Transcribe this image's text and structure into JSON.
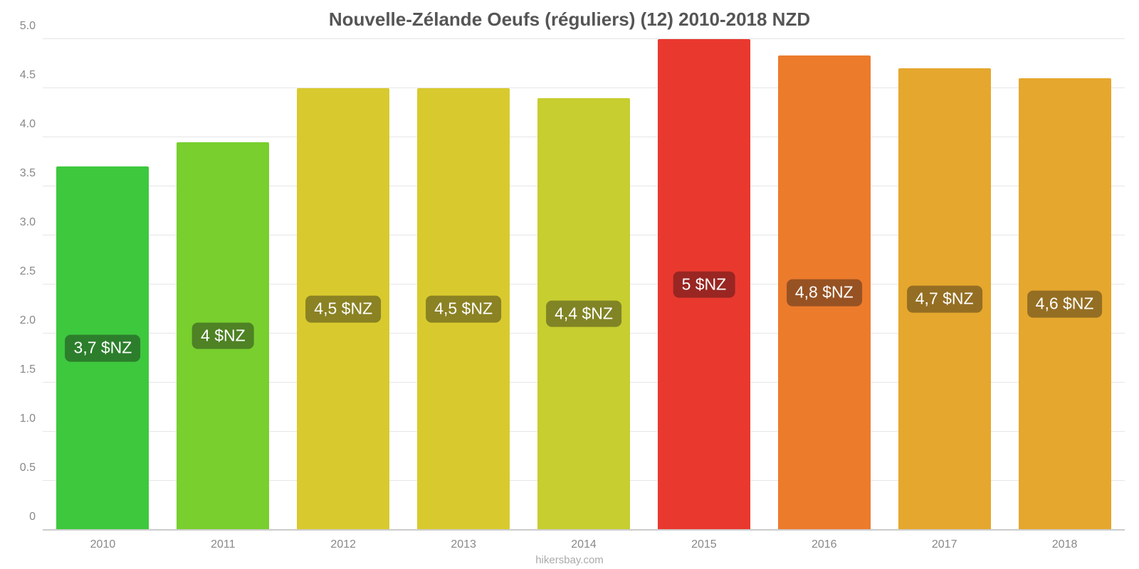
{
  "chart": {
    "type": "bar",
    "title": "Nouvelle-Zélande Oeufs (réguliers) (12) 2010-2018 NZD",
    "title_fontsize": 26,
    "title_color": "#555555",
    "source": "hikersbay.com",
    "source_fontsize": 15,
    "source_color": "#aaaaaa",
    "background_color": "#ffffff",
    "grid_color": "#e6e6e6",
    "baseline_color": "#cccccc",
    "axis_label_color": "#888888",
    "axis_fontsize": 16,
    "bar_width": 0.77,
    "ylim": [
      0,
      5.0
    ],
    "yticks": [
      "0",
      "0.5",
      "1.0",
      "1.5",
      "2.0",
      "2.5",
      "3.0",
      "3.5",
      "4.0",
      "4.5",
      "5.0"
    ],
    "ytick_values": [
      0,
      0.5,
      1.0,
      1.5,
      2.0,
      2.5,
      3.0,
      3.5,
      4.0,
      4.5,
      5.0
    ],
    "value_badge_bottom_pct": 50,
    "value_badge_fontsize": 23,
    "value_badge_radius": 8,
    "categories": [
      "2010",
      "2011",
      "2012",
      "2013",
      "2014",
      "2015",
      "2016",
      "2017",
      "2018"
    ],
    "values": [
      3.7,
      3.95,
      4.5,
      4.5,
      4.4,
      5.0,
      4.83,
      4.7,
      4.6
    ],
    "value_labels": [
      "3,7 $NZ",
      "4 $NZ",
      "4,5 $NZ",
      "4,5 $NZ",
      "4,4 $NZ",
      "5 $NZ",
      "4,8 $NZ",
      "4,7 $NZ",
      "4,6 $NZ"
    ],
    "bar_colors": [
      "#3ec83e",
      "#78cf2e",
      "#d8ca2e",
      "#d8ca2e",
      "#c7ce30",
      "#e9392f",
      "#ec7b2c",
      "#e5a72e",
      "#e5a72e"
    ],
    "badge_colors": [
      "#2c7e2c",
      "#4e8224",
      "#8a8223",
      "#8a8223",
      "#808425",
      "#992622",
      "#975223",
      "#946e23",
      "#946e23"
    ]
  }
}
